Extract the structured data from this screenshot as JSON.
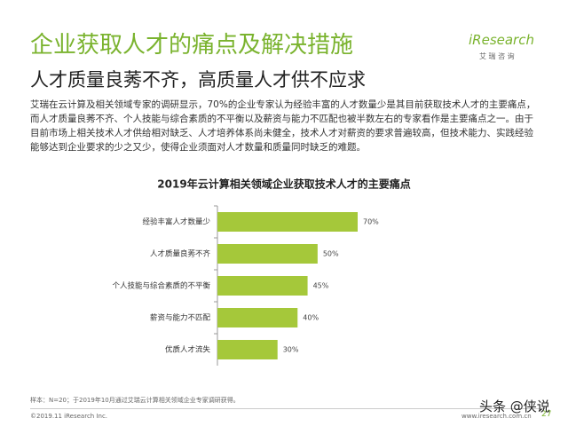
{
  "header": {
    "title": "企业获取人才的痛点及解决措施",
    "subtitle": "人才质量良莠不齐，高质量人才供不应求",
    "logo": "iResearch",
    "logo_sub": "艾 瑞 咨 询"
  },
  "body": {
    "paragraph": "艾瑞在云计算及相关领域专家的调研显示，70%的企业专家认为经验丰富的人才数量少是其目前获取技术人才的主要痛点，而人才质量良莠不齐、个人技能与综合素质的不平衡以及薪资与能力不匹配也被半数左右的专家看作是主要痛点之一。由于目前市场上相关技术人才供给相对缺乏、人才培养体系尚未健全，技术人才对薪资的要求普遍较高，但技术能力、实践经验能够达到企业要求的少之又少，使得企业须面对人才数量和质量同时缺乏的难题。"
  },
  "chart_data": {
    "type": "bar",
    "orientation": "horizontal",
    "title": "2019年云计算相关领域企业获取技术人才的主要痛点",
    "categories": [
      "经验丰富人才数量少",
      "人才质量良莠不齐",
      "个人技能与综合素质的不平衡",
      "薪资与能力不匹配",
      "优质人才流失"
    ],
    "values": [
      70,
      50,
      45,
      40,
      30
    ],
    "value_labels": [
      "70%",
      "50%",
      "45%",
      "40%",
      "30%"
    ],
    "color": "#a5c83a"
  },
  "footer": {
    "note": "样本：N=20；于2019年10月通过艾瑞云计算相关领域企业专家调研获得。",
    "copyright": "©2019.11 iResearch Inc.",
    "url": "www.iresearch.com.cn",
    "page": "27",
    "watermark": "头条 @侠说"
  }
}
